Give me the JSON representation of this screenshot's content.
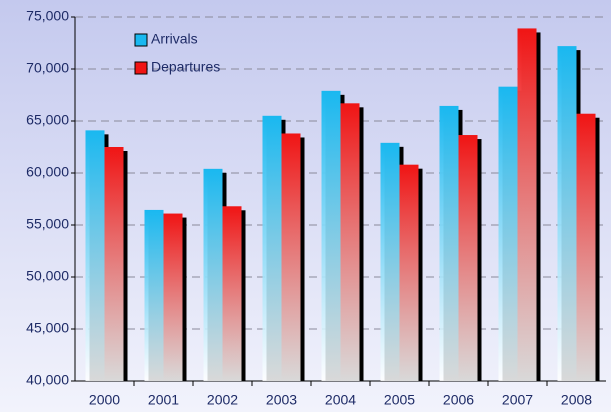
{
  "chart_data": {
    "type": "bar",
    "categories": [
      "2000",
      "2001",
      "2002",
      "2003",
      "2004",
      "2005",
      "2006",
      "2007",
      "2008"
    ],
    "series": [
      {
        "name": "Arrivals",
        "color": "#19b8f0",
        "values": [
          64100,
          56450,
          60400,
          65500,
          67900,
          62900,
          66450,
          68300,
          72200
        ]
      },
      {
        "name": "Departures",
        "color": "#f01414",
        "values": [
          62500,
          56100,
          56800,
          63800,
          66700,
          60800,
          63650,
          73900,
          65700
        ]
      }
    ],
    "ylim": [
      40000,
      75000
    ],
    "yticks": [
      {
        "value": 40000,
        "label": "40,000"
      },
      {
        "value": 45000,
        "label": "45,000"
      },
      {
        "value": 50000,
        "label": "50,000"
      },
      {
        "value": 55000,
        "label": "55,000"
      },
      {
        "value": 60000,
        "label": "60,000"
      },
      {
        "value": 65000,
        "label": "65,000"
      },
      {
        "value": 70000,
        "label": "70,000"
      },
      {
        "value": 75000,
        "label": "75,000"
      }
    ],
    "grid": true,
    "legend": "top-left"
  }
}
